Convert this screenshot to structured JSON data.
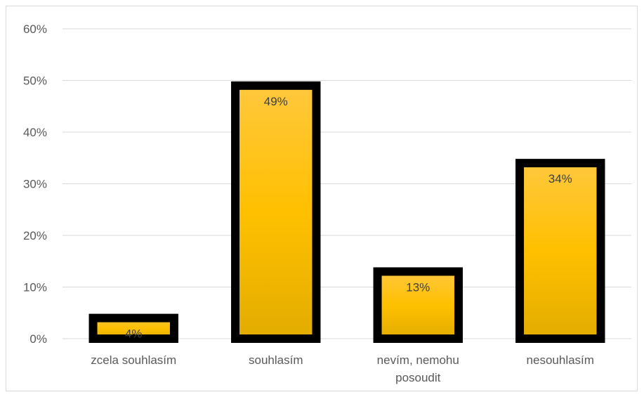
{
  "chart_data": {
    "type": "bar",
    "categories": [
      [
        "zcela souhlasím"
      ],
      [
        "souhlasím"
      ],
      [
        "nevím, nemohu",
        "posoudit"
      ],
      [
        "nesouhlasím"
      ]
    ],
    "values": [
      4,
      49,
      13,
      34
    ],
    "data_labels": [
      "4%",
      "49%",
      "13%",
      "34%"
    ],
    "ylim": [
      0,
      60
    ],
    "yticks": [
      0,
      10,
      20,
      30,
      40,
      50,
      60
    ],
    "ytick_labels": [
      "0%",
      "10%",
      "20%",
      "30%",
      "40%",
      "50%",
      "60%"
    ],
    "grid": true,
    "colors": {
      "bar_top": "#FFC83D",
      "bar_mid": "#FFC000",
      "bar_bottom": "#E2AC00",
      "bar_outline": "#000000",
      "gridline": "#d9d9d9",
      "text": "#595959",
      "label": "#404040"
    }
  }
}
